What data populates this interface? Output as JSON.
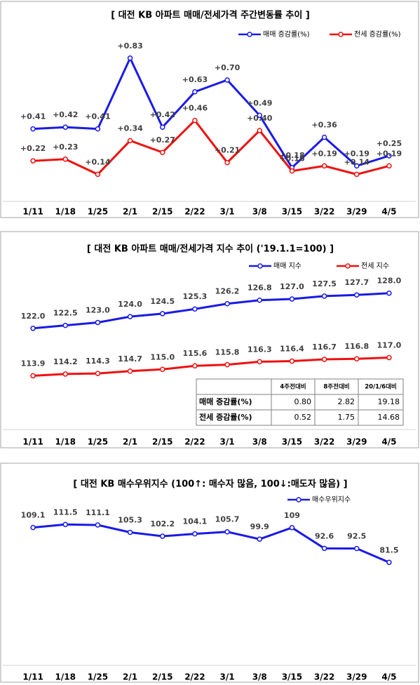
{
  "chart_data": [
    {
      "type": "line",
      "title": "[  대전  KB 아파트 매매/전세가격 주간변동률 추이  ]",
      "categories": [
        "1/11",
        "1/18",
        "1/25",
        "2/1",
        "2/15",
        "2/22",
        "3/1",
        "3/8",
        "3/15",
        "3/22",
        "3/29",
        "4/5"
      ],
      "series": [
        {
          "name": "매매 증감률(%)",
          "color": "#1a1ae6",
          "values": [
            0.41,
            0.42,
            0.41,
            0.83,
            0.42,
            0.63,
            0.7,
            0.49,
            0.18,
            0.36,
            0.19,
            0.25
          ],
          "value_labels": [
            "+0.41",
            "+0.42",
            "+0.41",
            "+0.83",
            "+0.42",
            "+0.63",
            "+0.70",
            "+0.49",
            "+0.18",
            "+0.36",
            "+0.19",
            "+0.25"
          ]
        },
        {
          "name": "전세 증감률(%)",
          "color": "#ee1111",
          "values": [
            0.22,
            0.23,
            0.14,
            0.34,
            0.27,
            0.46,
            0.21,
            0.4,
            0.16,
            0.19,
            0.14,
            0.19
          ],
          "value_labels": [
            "+0.22",
            "+0.23",
            "+0.14",
            "+0.34",
            "+0.27",
            "+0.46",
            "+0.21",
            "+0.40",
            "+0.16",
            "+0.19",
            "+0.14",
            "+0.19"
          ]
        }
      ],
      "ylim": [
        0,
        0.9
      ],
      "legend": "top-right"
    },
    {
      "type": "line",
      "title": "[  대전  KB 아파트 매매/전세가격 지수 추이 ('19.1.1=100)  ]",
      "categories": [
        "1/11",
        "1/18",
        "1/25",
        "2/1",
        "2/15",
        "2/22",
        "3/1",
        "3/8",
        "3/15",
        "3/22",
        "3/29",
        "4/5"
      ],
      "series": [
        {
          "name": "매매 지수",
          "color": "#1a1ae6",
          "values": [
            122.0,
            122.5,
            123.0,
            124.0,
            124.5,
            125.3,
            126.2,
            126.8,
            127.0,
            127.5,
            127.7,
            128.0
          ],
          "value_labels": [
            "122.0",
            "122.5",
            "123.0",
            "124.0",
            "124.5",
            "125.3",
            "126.2",
            "126.8",
            "127.0",
            "127.5",
            "127.7",
            "128.0"
          ]
        },
        {
          "name": "전세 지수",
          "color": "#ee1111",
          "values": [
            113.9,
            114.2,
            114.3,
            114.7,
            115.0,
            115.6,
            115.8,
            116.3,
            116.4,
            116.7,
            116.8,
            117.0
          ],
          "value_labels": [
            "113.9",
            "114.2",
            "114.3",
            "114.7",
            "115.0",
            "115.6",
            "115.8",
            "116.3",
            "116.4",
            "116.7",
            "116.8",
            "117.0"
          ]
        }
      ],
      "ylim": [
        110,
        130
      ],
      "legend": "top-right",
      "table": {
        "columns": [
          "4주전대비",
          "8주전대비",
          "20/1/6대비"
        ],
        "rows": [
          {
            "label": "매매 증감률(%)",
            "cells": [
              "0.80",
              "2.82",
              "19.18"
            ]
          },
          {
            "label": "전세 증감률(%)",
            "cells": [
              "0.52",
              "1.75",
              "14.68"
            ]
          }
        ]
      }
    },
    {
      "type": "line",
      "title": "[  대전  KB 매수우위지수 (100↑: 매수자 많음, 100↓:매도자 많음)  ]",
      "categories": [
        "1/11",
        "1/18",
        "1/25",
        "2/1",
        "2/15",
        "2/22",
        "3/1",
        "3/8",
        "3/15",
        "3/22",
        "3/29",
        "4/5"
      ],
      "series": [
        {
          "name": "매수우위지수",
          "color": "#1a1ae6",
          "values": [
            109.1,
            111.5,
            111.1,
            105.3,
            102.2,
            104.1,
            105.7,
            99.9,
            109.0,
            92.6,
            92.5,
            81.5
          ]
        }
      ],
      "ylim": [
        0,
        120
      ],
      "legend": "top-right"
    }
  ]
}
